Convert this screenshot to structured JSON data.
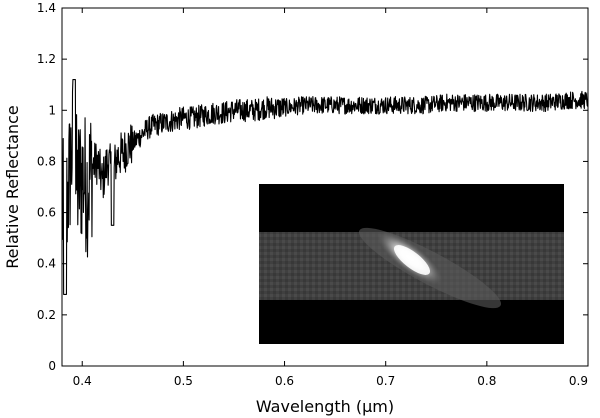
{
  "chart_data": {
    "type": "line",
    "title": "",
    "xlabel": "Wavelength (µm)",
    "ylabel": "Relative Reflectance",
    "xlim": [
      0.38,
      0.9
    ],
    "ylim": [
      0,
      1.4
    ],
    "x_ticks": [
      0.4,
      0.5,
      0.6,
      0.7,
      0.8,
      0.9
    ],
    "x_tick_labels": [
      "0.4",
      "0.5",
      "0.6",
      "0.7",
      "0.8",
      "0.9"
    ],
    "y_ticks": [
      0,
      0.2,
      0.4,
      0.6,
      0.8,
      1,
      1.2,
      1.4
    ],
    "y_tick_labels": [
      "0",
      "0.2",
      "0.4",
      "0.6",
      "0.8",
      "1",
      "1.2",
      "1.4"
    ],
    "grid": false,
    "legend": "none",
    "line_color": "#000000",
    "series": [
      {
        "x": [
          0.38,
          0.385,
          0.39,
          0.395,
          0.4,
          0.405,
          0.41,
          0.415,
          0.42,
          0.425,
          0.43,
          0.435,
          0.44,
          0.445,
          0.45,
          0.455,
          0.46,
          0.465,
          0.47,
          0.48,
          0.49,
          0.5,
          0.51,
          0.52,
          0.53,
          0.54,
          0.55,
          0.56,
          0.57,
          0.58,
          0.6,
          0.62,
          0.64,
          0.66,
          0.68,
          0.7,
          0.72,
          0.74,
          0.76,
          0.78,
          0.8,
          0.82,
          0.84,
          0.86,
          0.88,
          0.9
        ],
        "values": [
          0.6,
          0.65,
          0.85,
          0.7,
          0.75,
          0.7,
          0.78,
          0.8,
          0.72,
          0.8,
          0.76,
          0.82,
          0.83,
          0.86,
          0.87,
          0.89,
          0.91,
          0.93,
          0.94,
          0.95,
          0.96,
          0.97,
          0.97,
          0.98,
          0.99,
          0.99,
          1.0,
          1.0,
          1.0,
          1.01,
          1.01,
          1.02,
          1.02,
          1.02,
          1.02,
          1.02,
          1.02,
          1.02,
          1.03,
          1.03,
          1.03,
          1.03,
          1.03,
          1.03,
          1.04,
          1.04
        ]
      }
    ],
    "inset_image": {
      "kind": "grayscale CCD image of an elongated bright streak on a dark background"
    }
  }
}
